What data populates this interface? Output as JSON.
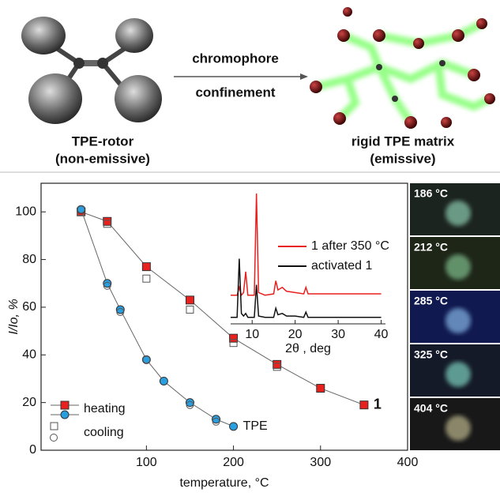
{
  "top": {
    "arrow_label_1": "chromophore",
    "arrow_label_2": "confinement",
    "left_label_1": "TPE-rotor",
    "left_label_2": "(non-emissive)",
    "right_label_1": "rigid TPE matrix",
    "right_label_2": "(emissive)"
  },
  "chart_data": [
    {
      "type": "line",
      "xlabel": "temperature, °C",
      "ylabel": "I/Io, %",
      "xlim": [
        -21,
        400
      ],
      "ylim": [
        0,
        112
      ],
      "xticks": [
        100,
        200,
        300,
        400
      ],
      "yticks": [
        0,
        20,
        40,
        60,
        80,
        100
      ],
      "legend": [
        "heating",
        "cooling"
      ],
      "series": [
        {
          "name": "1",
          "color": "#e8211f",
          "marker": "square",
          "filled": true,
          "x": [
            25,
            55,
            100,
            150,
            200,
            250,
            300,
            350
          ],
          "values": [
            100,
            96,
            77,
            63,
            47,
            36,
            26,
            19
          ]
        },
        {
          "color": "#555555",
          "marker": "square",
          "filled": false,
          "x": [
            25,
            55,
            100,
            150,
            200,
            250
          ],
          "values": [
            100,
            95,
            72,
            59,
            45,
            35
          ]
        },
        {
          "name": "TPE",
          "color": "#2a9fe0",
          "marker": "circle",
          "filled": true,
          "x": [
            25,
            55,
            70,
            100,
            120,
            150,
            180,
            200
          ],
          "values": [
            101,
            70,
            59,
            38,
            29,
            20,
            13,
            10
          ]
        },
        {
          "color": "#555555",
          "marker": "circle",
          "filled": false,
          "x": [
            25,
            55,
            70,
            100,
            150,
            180
          ],
          "values": [
            101,
            69,
            58,
            38,
            19,
            12
          ]
        }
      ]
    },
    {
      "type": "line",
      "xlabel": "2θ , deg",
      "xlim": [
        5,
        41
      ],
      "ylim": [
        0,
        100
      ],
      "xticks": [
        10,
        20,
        30,
        40
      ],
      "x": [
        5,
        6.5,
        7,
        7.5,
        8,
        8.5,
        9,
        10.5,
        11,
        11.5,
        13,
        15,
        15.5,
        16,
        17,
        18,
        20,
        22,
        22.5,
        23,
        25,
        30,
        32,
        35,
        40
      ],
      "series": [
        {
          "name": "1 after 350 °C",
          "color": "#e8211f",
          "values": [
            22,
            22,
            28,
            22,
            24,
            40,
            22,
            22,
            100,
            24,
            22,
            23,
            33,
            26,
            28,
            25,
            24,
            23,
            28,
            23,
            23,
            23,
            23,
            23,
            23
          ]
        },
        {
          "name": "activated 1",
          "color": "#111111",
          "values": [
            5,
            5,
            50,
            8,
            6,
            8,
            5,
            5,
            30,
            6,
            5,
            5,
            12,
            7,
            8,
            6,
            6,
            5,
            9,
            5,
            5,
            5,
            5,
            5,
            5
          ]
        }
      ]
    }
  ],
  "photos": {
    "labels": [
      "186 °C",
      "212 °C",
      "285 °C",
      "325 °C",
      "404 °C"
    ]
  }
}
